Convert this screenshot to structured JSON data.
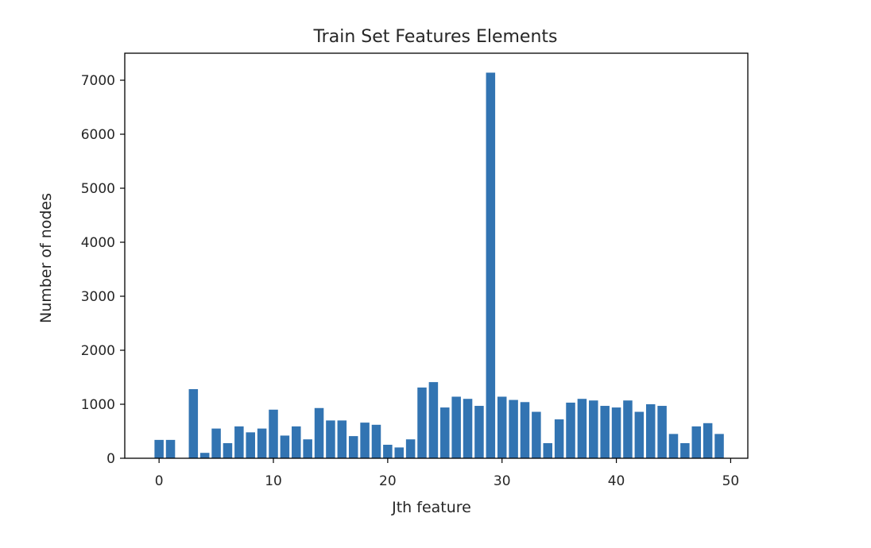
{
  "chart_data": {
    "type": "bar",
    "title": "Train Set Features Elements",
    "xlabel": "Jth feature",
    "ylabel": "Number of nodes",
    "xlim": [
      -3,
      51.5
    ],
    "ylim": [
      0,
      7500
    ],
    "xticks": [
      0,
      10,
      20,
      30,
      40,
      50
    ],
    "yticks": [
      0,
      1000,
      2000,
      3000,
      4000,
      5000,
      6000,
      7000
    ],
    "bar_color": "#3274b2",
    "grid": false,
    "x": [
      0,
      1,
      2,
      3,
      4,
      5,
      6,
      7,
      8,
      9,
      10,
      11,
      12,
      13,
      14,
      15,
      16,
      17,
      18,
      19,
      20,
      21,
      22,
      23,
      24,
      25,
      26,
      27,
      28,
      29,
      30,
      31,
      32,
      33,
      34,
      35,
      36,
      37,
      38,
      39,
      40,
      41,
      42,
      43,
      44,
      45,
      46,
      47,
      48,
      49
    ],
    "values": [
      340,
      340,
      0,
      1280,
      100,
      550,
      280,
      590,
      480,
      550,
      900,
      420,
      590,
      350,
      930,
      700,
      700,
      410,
      660,
      620,
      250,
      200,
      350,
      1310,
      1410,
      940,
      1140,
      1100,
      970,
      7140,
      1140,
      1080,
      1040,
      860,
      280,
      720,
      1030,
      1100,
      1070,
      970,
      940,
      1070,
      860,
      1000,
      970,
      450,
      280,
      590,
      650,
      450
    ]
  }
}
